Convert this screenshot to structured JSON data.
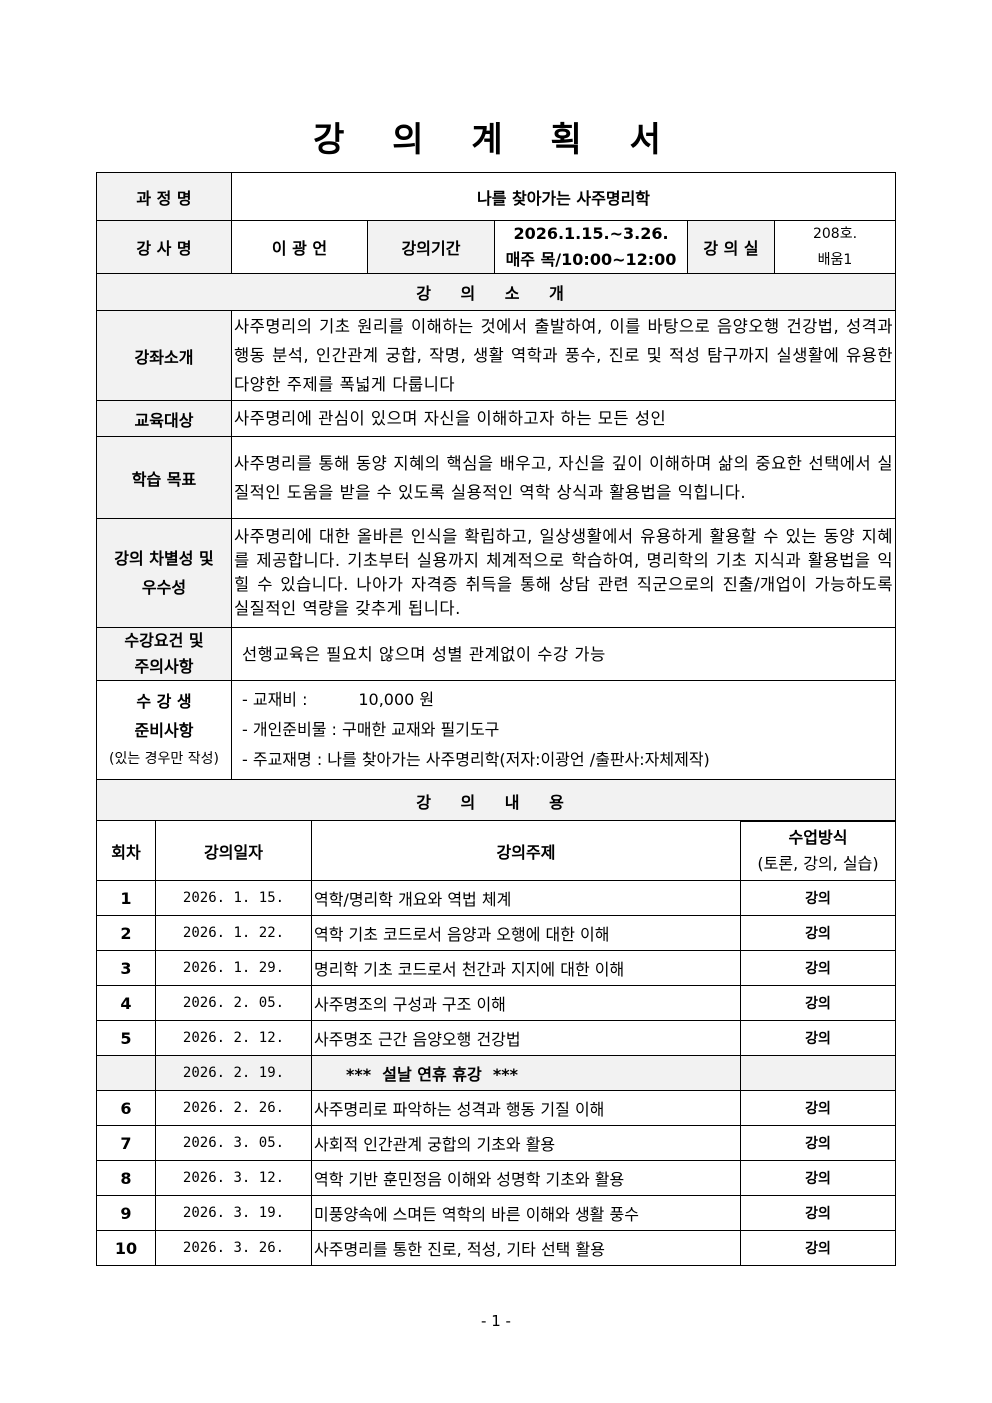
{
  "title": "강 의 계 획 서",
  "course": {
    "name_label": "과 정 명",
    "name": "나를 찾아가는 사주명리학",
    "instructor_label": "강 사 명",
    "instructor": "이 광 언",
    "period_label": "강의기간",
    "period_line1": "2026.1.15.~3.26.",
    "period_line2": "매주 목/10:00~12:00",
    "room_label": "강 의 실",
    "room_line1": "208호.",
    "room_line2": "배움1"
  },
  "intro": {
    "section_title": "강 의 소 개",
    "summary_label": "강좌소개",
    "summary": "사주명리의 기초 원리를 이해하는 것에서 출발하여, 이를 바탕으로 음양오행 건강법, 성격과 행동 분석, 인간관계 궁합, 작명, 생활 역학과 풍수, 진로 및 적성 탐구까지 실생활에 유용한 다양한 주제를 폭넓게 다룹니다",
    "target_label": "교육대상",
    "target": "사주명리에 관심이 있으며 자신을 이해하고자 하는 모든 성인",
    "goal_label": "학습 목표",
    "goal": "사주명리를 통해 동양 지혜의 핵심을 배우고, 자신을 깊이 이해하며 삶의 중요한 선택에서 실질적인 도움을 받을 수 있도록 실용적인 역학 상식과 활용법을 익힙니다.",
    "diff_label_1": "강의 차별성 및",
    "diff_label_2": "우수성",
    "diff": "사주명리에 대한 올바른 인식을 확립하고, 일상생활에서 유용하게 활용할 수 있는 동양 지혜를 제공합니다. 기초부터 실용까지 체계적으로 학습하여, 명리학의 기초 지식과 활용법을 익힐 수 있습니다. 나아가 자격증 취득을 통해 상담 관련 직군으로의 진출/개업이 가능하도록 실질적인 역량을 갖추게 됩니다.",
    "req_label_1": "수강요건 및",
    "req_label_2": "주의사항",
    "req": "선행교육은 필요치 않으며 성별 관계없이 수강 가능",
    "prep_label_1": "수 강 생",
    "prep_label_2": "준비사항",
    "prep_label_3": "(있는 경우만 작성)",
    "prep_items": [
      "- 교재비 :          10,000 원",
      "- 개인준비물 : 구매한 교재와 필기도구",
      "- 주교재명 : 나를 찾아가는 사주명리학(저자:이광언 /출판사:자체제작)"
    ]
  },
  "schedule": {
    "section_title": "강 의 내 용",
    "headers": {
      "no": "회차",
      "date": "강의일자",
      "topic": "강의주제",
      "method": "수업방식",
      "method_sub": "(토론, 강의, 실습)"
    },
    "rows": [
      {
        "no": "1",
        "date": "2026. 1. 15.",
        "topic": "역학/명리학 개요와 역법 체계",
        "method": "강의"
      },
      {
        "no": "2",
        "date": "2026. 1. 22.",
        "topic": "역학 기초 코드로서 음양과 오행에 대한 이해",
        "method": "강의"
      },
      {
        "no": "3",
        "date": "2026. 1. 29.",
        "topic": "명리학 기초 코드로서 천간과 지지에 대한 이해",
        "method": "강의"
      },
      {
        "no": "4",
        "date": "2026. 2. 05.",
        "topic": "사주명조의 구성과 구조 이해",
        "method": "강의"
      },
      {
        "no": "5",
        "date": "2026. 2. 12.",
        "topic": "사주명조 근간 음양오행 건강법",
        "method": "강의"
      },
      {
        "no": "",
        "date": "2026. 2. 19.",
        "topic": "***  설날 연휴 휴강  ***",
        "method": ""
      },
      {
        "no": "6",
        "date": "2026. 2. 26.",
        "topic": "사주명리로 파악하는 성격과 행동 기질 이해",
        "method": "강의"
      },
      {
        "no": "7",
        "date": "2026. 3. 05.",
        "topic": "사회적 인간관계 궁합의 기초와 활용",
        "method": "강의"
      },
      {
        "no": "8",
        "date": "2026. 3. 12.",
        "topic": "역학 기반 훈민정음 이해와 성명학 기초와 활용",
        "method": "강의"
      },
      {
        "no": "9",
        "date": "2026. 3. 19.",
        "topic": "미풍양속에 스며든 역학의 바른 이해와 생활 풍수",
        "method": "강의"
      },
      {
        "no": "10",
        "date": "2026. 3. 26.",
        "topic": "사주명리를 통한 진로, 적성, 기타 선택 활용",
        "method": "강의"
      }
    ]
  },
  "footer": "- 1 -"
}
